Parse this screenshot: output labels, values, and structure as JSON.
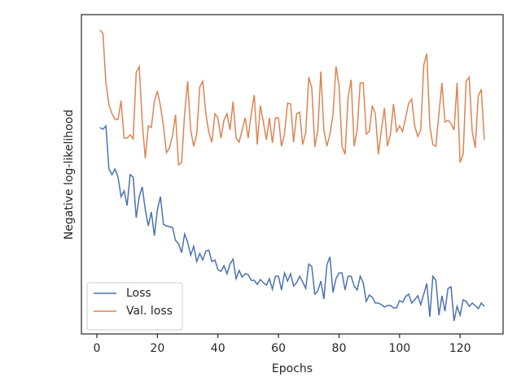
{
  "chart_data": {
    "type": "line",
    "xlabel": "Epochs",
    "ylabel": "Negative log-likelihood",
    "xlim": [
      -5.1,
      134.2
    ],
    "xticks": [
      0,
      20,
      40,
      60,
      80,
      100,
      120
    ],
    "ylim": [
      0,
      393
    ],
    "legend": "lower left",
    "x": [
      1,
      2,
      3,
      4,
      5,
      6,
      7,
      8,
      9,
      10,
      11,
      12,
      13,
      14,
      15,
      16,
      17,
      18,
      19,
      20,
      21,
      22,
      23,
      24,
      25,
      26,
      27,
      28,
      29,
      30,
      31,
      32,
      33,
      34,
      35,
      36,
      37,
      38,
      39,
      40,
      41,
      42,
      43,
      44,
      45,
      46,
      47,
      48,
      49,
      50,
      51,
      52,
      53,
      54,
      55,
      56,
      57,
      58,
      59,
      60,
      61,
      62,
      63,
      64,
      65,
      66,
      67,
      68,
      69,
      70,
      71,
      72,
      73,
      74,
      75,
      76,
      77,
      78,
      79,
      80,
      81,
      82,
      83,
      84,
      85,
      86,
      87,
      88,
      89,
      90,
      91,
      92,
      93,
      94,
      95,
      96,
      97,
      98,
      99,
      100,
      101,
      102,
      103,
      104,
      105,
      106,
      107,
      108,
      109,
      110,
      111,
      112,
      113,
      114,
      115,
      116,
      117,
      118,
      119,
      120,
      121,
      122,
      123,
      124,
      125,
      126,
      127,
      128
    ],
    "series": [
      {
        "name": "Loss",
        "color": "#4c72b0",
        "values": [
          254,
          252,
          256,
          203,
          196,
          203,
          193,
          169,
          176,
          158,
          196,
          193,
          143,
          169,
          181,
          153,
          133,
          150,
          121,
          153,
          169,
          135,
          133,
          132,
          131,
          115,
          111,
          100,
          123,
          113,
          97,
          108,
          89,
          99,
          91,
          102,
          103,
          89,
          91,
          79,
          77,
          84,
          74,
          86,
          92,
          68,
          78,
          70,
          74,
          73,
          66,
          66,
          61,
          67,
          63,
          60,
          68,
          55,
          71,
          71,
          54,
          75,
          65,
          74,
          59,
          63,
          71,
          64,
          56,
          86,
          83,
          49,
          53,
          65,
          43,
          85,
          95,
          51,
          68,
          75,
          75,
          54,
          71,
          71,
          59,
          54,
          71,
          63,
          40,
          48,
          45,
          38,
          38,
          36,
          33,
          35,
          35,
          32,
          32,
          41,
          39,
          46,
          49,
          38,
          42,
          47,
          36,
          49,
          62,
          21,
          71,
          66,
          23,
          47,
          28,
          56,
          58,
          16,
          34,
          23,
          42,
          40,
          34,
          38,
          35,
          31,
          38,
          34
        ]
      },
      {
        "name": "Val. loss",
        "color": "#dd8452",
        "values": [
          374,
          370,
          309,
          282,
          271,
          264,
          264,
          287,
          241,
          241,
          245,
          240,
          322,
          329,
          261,
          216,
          256,
          254,
          286,
          299,
          281,
          256,
          223,
          229,
          244,
          270,
          208,
          211,
          271,
          311,
          251,
          231,
          246,
          304,
          311,
          271,
          248,
          236,
          271,
          266,
          241,
          263,
          271,
          251,
          286,
          241,
          236,
          251,
          266,
          241,
          271,
          294,
          233,
          281,
          261,
          239,
          266,
          235,
          266,
          266,
          231,
          246,
          284,
          283,
          236,
          271,
          273,
          233,
          248,
          316,
          303,
          230,
          251,
          323,
          251,
          231,
          246,
          269,
          329,
          306,
          231,
          221,
          291,
          313,
          231,
          251,
          309,
          309,
          246,
          249,
          281,
          271,
          221,
          251,
          278,
          231,
          246,
          283,
          249,
          256,
          249,
          266,
          284,
          289,
          256,
          243,
          251,
          331,
          345,
          256,
          233,
          231,
          271,
          309,
          261,
          263,
          259,
          251,
          309,
          211,
          221,
          311,
          316,
          249,
          229,
          293,
          301,
          239
        ]
      }
    ]
  }
}
